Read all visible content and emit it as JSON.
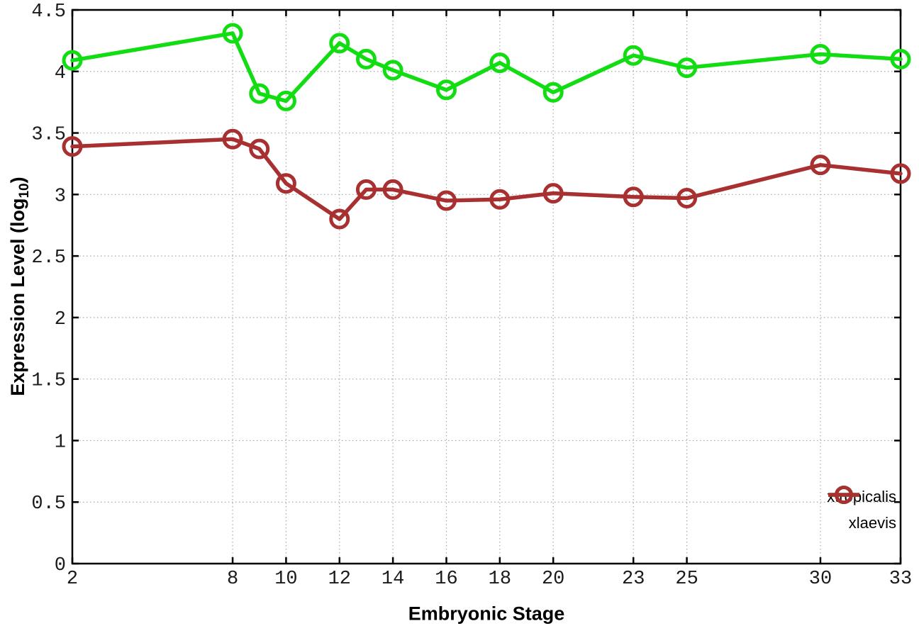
{
  "chart_data": {
    "type": "line",
    "title": "",
    "xlabel": "Embryonic Stage",
    "ylabel": "Expression Level (log10)",
    "ylabel_prefix": "Expression Level (log",
    "ylabel_sub": "10",
    "ylabel_suffix": ")",
    "xlim": [
      2,
      33
    ],
    "ylim": [
      0,
      4.5
    ],
    "grid": true,
    "legend_position": "bottom-right",
    "x_ticks": [
      2,
      8,
      10,
      12,
      14,
      16,
      18,
      20,
      23,
      25,
      30,
      33
    ],
    "y_ticks": [
      0,
      0.5,
      1,
      1.5,
      2,
      2.5,
      3,
      3.5,
      4,
      4.5
    ],
    "x": [
      2,
      8,
      9,
      10,
      12,
      13,
      14,
      16,
      18,
      20,
      23,
      25,
      30,
      33
    ],
    "series": [
      {
        "name": "xtropicalis",
        "color": "#12dd12",
        "values": [
          4.09,
          4.31,
          3.82,
          3.76,
          4.23,
          4.1,
          4.01,
          3.85,
          4.07,
          3.83,
          4.13,
          4.03,
          4.14,
          4.1
        ]
      },
      {
        "name": "xlaevis",
        "color": "#a83030",
        "values": [
          3.39,
          3.45,
          3.37,
          3.09,
          2.8,
          3.04,
          3.04,
          2.95,
          2.96,
          3.01,
          2.98,
          2.97,
          3.24,
          3.17
        ]
      }
    ]
  },
  "colors": {
    "axis": "#000000",
    "grid": "#a8a8a8",
    "tick_label": "#1a1a1a",
    "background": "#ffffff"
  }
}
